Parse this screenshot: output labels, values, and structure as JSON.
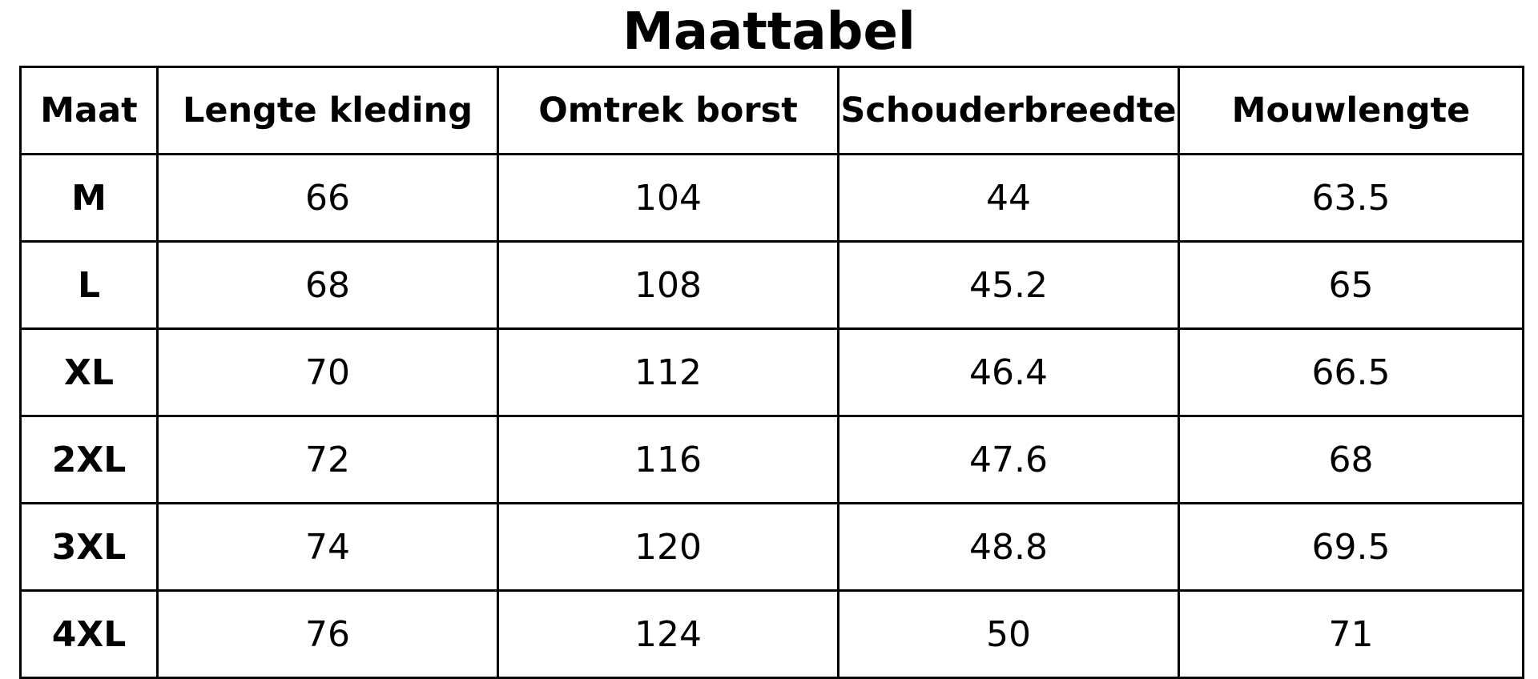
{
  "title": "Maattabel",
  "table": {
    "headers": [
      "Maat",
      "Lengte kleding",
      "Omtrek borst",
      "Schouderbreedte",
      "Mouwlengte"
    ],
    "rows": [
      [
        "M",
        "66",
        "104",
        "44",
        "63.5"
      ],
      [
        "L",
        "68",
        "108",
        "45.2",
        "65"
      ],
      [
        "XL",
        "70",
        "112",
        "46.4",
        "66.5"
      ],
      [
        "2XL",
        "72",
        "116",
        "47.6",
        "68"
      ],
      [
        "3XL",
        "74",
        "120",
        "48.8",
        "69.5"
      ],
      [
        "4XL",
        "76",
        "124",
        "50",
        "71"
      ]
    ]
  }
}
